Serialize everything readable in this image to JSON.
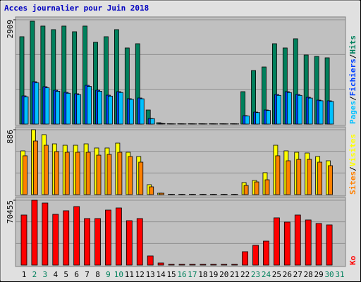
{
  "chart_data": [
    {
      "type": "bar",
      "title": "Acces journalier pour Juin 2018",
      "categories": [
        "1",
        "2",
        "3",
        "4",
        "5",
        "6",
        "7",
        "8",
        "9",
        "10",
        "11",
        "12",
        "13",
        "14",
        "15",
        "16",
        "17",
        "18",
        "19",
        "20",
        "21",
        "22",
        "23",
        "24",
        "25",
        "26",
        "27",
        "28",
        "29",
        "30",
        "31"
      ],
      "category_colors": [
        "#000000",
        "#00805c",
        "#00805c",
        "#000000",
        "#000000",
        "#000000",
        "#000000",
        "#000000",
        "#00805c",
        "#00805c",
        "#000000",
        "#000000",
        "#000000",
        "#000000",
        "#000000",
        "#00805c",
        "#00805c",
        "#000000",
        "#000000",
        "#000000",
        "#000000",
        "#000000",
        "#00805c",
        "#00805c",
        "#000000",
        "#000000",
        "#000000",
        "#000000",
        "#000000",
        "#00805c",
        "#00805c"
      ],
      "ylim": [
        0,
        2909
      ],
      "yticks": [
        2909
      ],
      "legend_separator": "/",
      "series": [
        {
          "name": "Hits",
          "color": "#00805c",
          "values": [
            2437,
            2870,
            2733,
            2634,
            2733,
            2575,
            2733,
            2280,
            2437,
            2634,
            2123,
            2241,
            393,
            39,
            10,
            10,
            10,
            10,
            10,
            10,
            10,
            904,
            1494,
            1592,
            2241,
            2123,
            2379,
            1927,
            1887,
            1848,
            null
          ]
        },
        {
          "name": "Fichiers",
          "color": "#0040ff",
          "values": [
            786,
            1180,
            1042,
            944,
            885,
            845,
            1081,
            944,
            806,
            904,
            708,
            727,
            157,
            20,
            8,
            8,
            8,
            8,
            8,
            8,
            8,
            236,
            334,
            393,
            826,
            904,
            826,
            747,
            668,
            649,
            null
          ]
        },
        {
          "name": "Pages",
          "color": "#00c0ff",
          "values": [
            760,
            1150,
            1010,
            915,
            860,
            820,
            1050,
            915,
            780,
            880,
            690,
            705,
            150,
            15,
            6,
            6,
            6,
            6,
            6,
            6,
            6,
            225,
            320,
            380,
            800,
            880,
            800,
            725,
            650,
            630,
            null
          ]
        }
      ]
    },
    {
      "type": "bar",
      "ylim": [
        0,
        886
      ],
      "yticks": [
        886
      ],
      "legend_separator": "/",
      "series": [
        {
          "name": "Visites",
          "color": "#ffff00",
          "values": [
            597,
            886,
            819,
            693,
            674,
            674,
            693,
            636,
            636,
            703,
            578,
            520,
            135,
            19,
            5,
            5,
            5,
            5,
            5,
            5,
            5,
            164,
            193,
            299,
            674,
            597,
            578,
            568,
            520,
            462,
            null
          ]
        },
        {
          "name": "Sites",
          "color": "#ff8000",
          "values": [
            530,
            732,
            674,
            587,
            578,
            578,
            578,
            539,
            549,
            578,
            520,
            443,
            106,
            19,
            5,
            5,
            5,
            5,
            5,
            5,
            5,
            125,
            173,
            202,
            530,
            462,
            481,
            481,
            443,
            395,
            null
          ]
        }
      ]
    },
    {
      "type": "bar",
      "ylim": [
        0,
        70455
      ],
      "yticks": [
        70455
      ],
      "series": [
        {
          "name": "Ko",
          "color": "#ff0000",
          "values": [
            54390,
            70455,
            67400,
            55150,
            59000,
            63580,
            50560,
            50560,
            59750,
            62050,
            48260,
            50560,
            9960,
            2300,
            800,
            800,
            800,
            800,
            800,
            800,
            800,
            14550,
            21450,
            26045,
            51330,
            46730,
            54390,
            49030,
            45200,
            43660,
            null
          ]
        }
      ]
    }
  ]
}
